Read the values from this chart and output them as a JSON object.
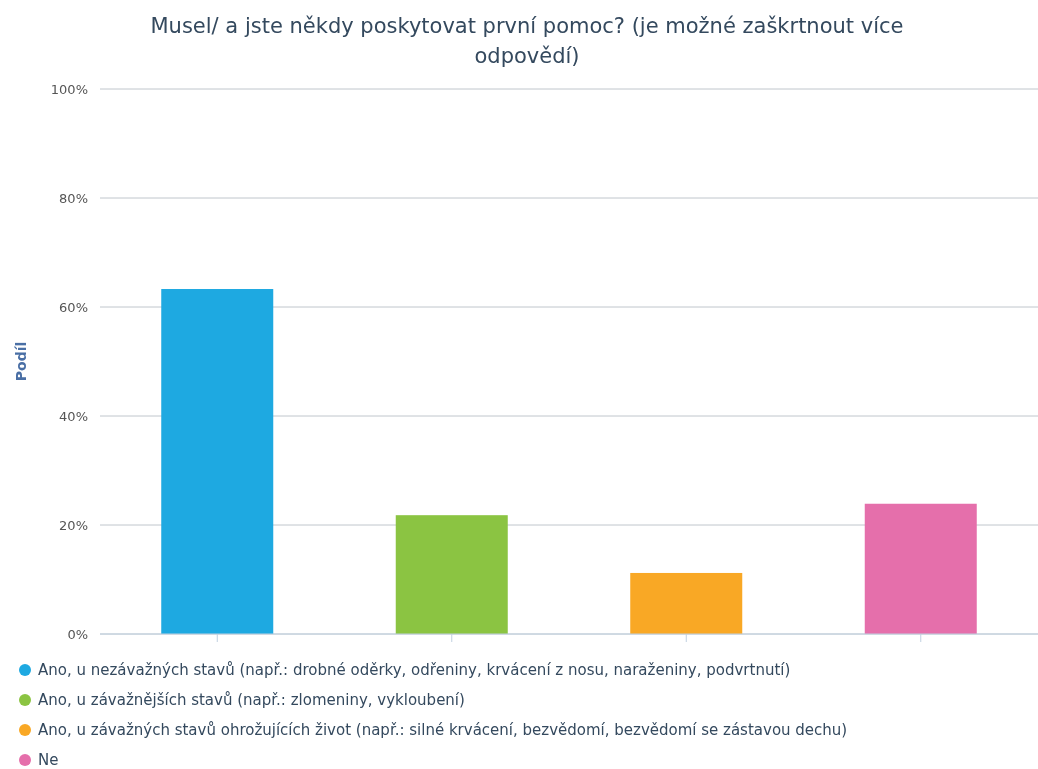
{
  "chart_data": {
    "type": "bar",
    "title": "Musel/ a jste někdy poskytovat první pomoc? (je možné zaškrtnout více odpovědí)",
    "ylabel": "Podíl",
    "categories": [
      null,
      null,
      null,
      null
    ],
    "series": [
      {
        "name": "Ano, u nezávažných stavů (např.: drobné oděrky, odřeniny, krvácení z nosu, naraženiny, podvrtnutí)",
        "color": "#1ea9e1",
        "values": [
          63.3,
          null,
          null,
          null
        ]
      },
      {
        "name": "Ano, u závažnějších stavů (např.: zlomeniny, vykloubení)",
        "color": "#8bc442",
        "values": [
          null,
          21.8,
          null,
          null
        ]
      },
      {
        "name": "Ano, u závažných stavů ohrožujících život (např.: silné krvácení, bezvědomí, bezvědomí se zástavou dechu)",
        "color": "#f9a825",
        "values": [
          null,
          null,
          11.2,
          null
        ]
      },
      {
        "name": "Ne",
        "color": "#e56fab",
        "values": [
          null,
          null,
          null,
          23.9
        ]
      }
    ],
    "ylim": [
      0,
      100
    ],
    "yticks": [
      {
        "value": 0,
        "label": "0%"
      },
      {
        "value": 20,
        "label": "20%"
      },
      {
        "value": 40,
        "label": "40%"
      },
      {
        "value": 60,
        "label": "60%"
      },
      {
        "value": 80,
        "label": "80%"
      },
      {
        "value": 100,
        "label": "100%"
      }
    ],
    "grid": "y",
    "legend": "bottom"
  }
}
